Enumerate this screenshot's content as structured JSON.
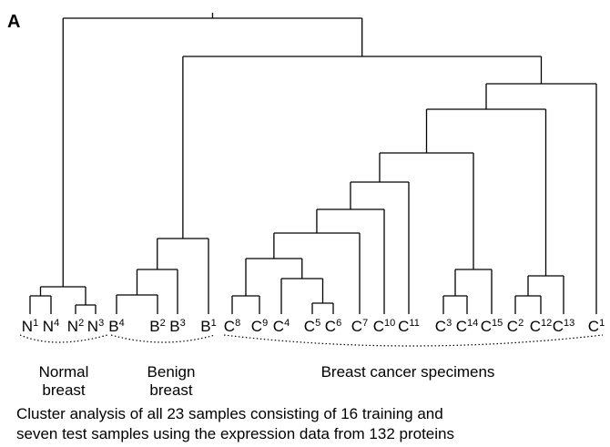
{
  "panel_label": "A",
  "leaves": [
    {
      "letter": "N",
      "index": "1"
    },
    {
      "letter": "N",
      "index": "4"
    },
    {
      "letter": "N",
      "index": "2"
    },
    {
      "letter": "N",
      "index": "3"
    },
    {
      "letter": "B",
      "index": "4"
    },
    {
      "letter": "B",
      "index": "2"
    },
    {
      "letter": "B",
      "index": "3"
    },
    {
      "letter": "B",
      "index": "1"
    },
    {
      "letter": "C",
      "index": "8"
    },
    {
      "letter": "C",
      "index": "9"
    },
    {
      "letter": "C",
      "index": "4"
    },
    {
      "letter": "C",
      "index": "5"
    },
    {
      "letter": "C",
      "index": "6"
    },
    {
      "letter": "C",
      "index": "7"
    },
    {
      "letter": "C",
      "index": "10"
    },
    {
      "letter": "C",
      "index": "11"
    },
    {
      "letter": "C",
      "index": "3"
    },
    {
      "letter": "C",
      "index": "14"
    },
    {
      "letter": "C",
      "index": "15"
    },
    {
      "letter": "C",
      "index": "2"
    },
    {
      "letter": "C",
      "index": "12"
    },
    {
      "letter": "C",
      "index": "13"
    },
    {
      "letter": "C",
      "index": "1"
    }
  ],
  "groups": [
    {
      "lines": [
        "Normal",
        "breast"
      ]
    },
    {
      "lines": [
        "Benign",
        "breast"
      ]
    },
    {
      "lines": [
        "Breast cancer specimens"
      ]
    }
  ],
  "caption": [
    "Cluster analysis of all 23 samples consisting of 16 training and",
    "seven test samples using the expression data from 132 proteins"
  ]
}
